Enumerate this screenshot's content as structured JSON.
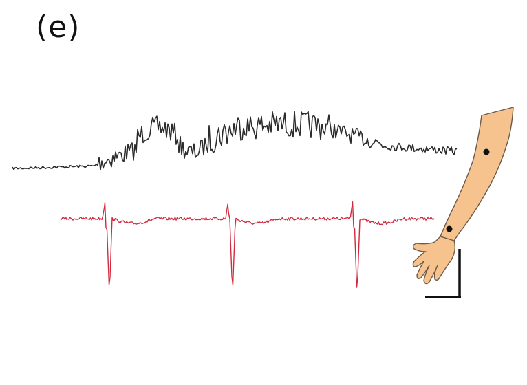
{
  "panel": {
    "label": "(e)"
  },
  "colors": {
    "upper_trace": "#2b2b2b",
    "lower_trace": "#d12b3f",
    "arm_fill": "#f6c28e",
    "arm_outline": "#6e5a45",
    "electrode_dot": "#111111",
    "scale_bar": "#111111"
  },
  "icons": {
    "arm": "arm-with-electrodes-icon",
    "scale_bar": "scale-bar-icon"
  }
}
